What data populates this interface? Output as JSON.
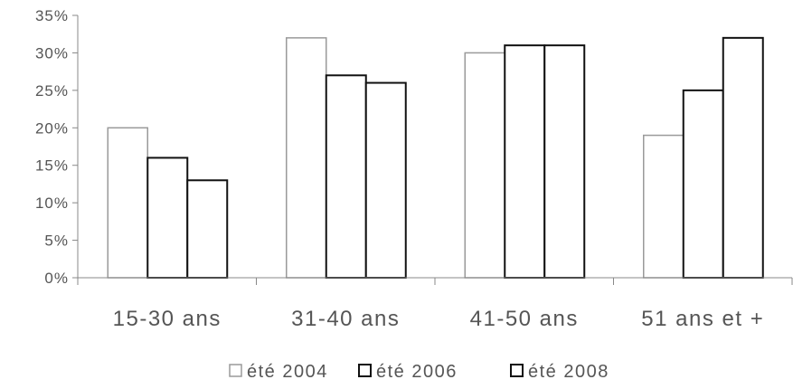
{
  "chart_data": {
    "type": "bar",
    "categories": [
      "15-30 ans",
      "31-40 ans",
      "41-50 ans",
      "51 ans et +"
    ],
    "series": [
      {
        "name": "été 2004",
        "values": [
          20,
          32,
          30,
          19
        ],
        "color": "#9a9a9a"
      },
      {
        "name": "été 2006",
        "values": [
          16,
          27,
          31,
          25
        ],
        "color": "#111111"
      },
      {
        "name": "été 2008",
        "values": [
          13,
          26,
          31,
          32
        ],
        "color": "#111111"
      }
    ],
    "ylim": [
      0,
      35
    ],
    "yticks": [
      0,
      5,
      10,
      15,
      20,
      25,
      30,
      35
    ],
    "ytick_format": "%",
    "legend_position": "bottom",
    "grid": false
  }
}
